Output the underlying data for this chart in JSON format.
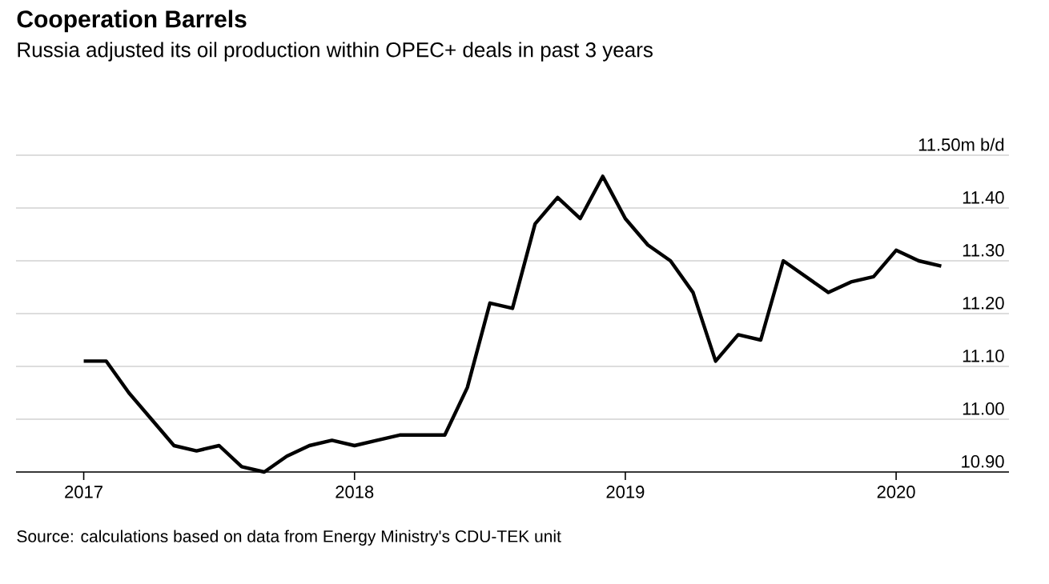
{
  "chart_data": {
    "type": "line",
    "title": "Cooperation Barrels",
    "subtitle": "Russia adjusted its oil production within OPEC+ deals in past 3 years",
    "x": [
      "2017-01",
      "2017-02",
      "2017-03",
      "2017-04",
      "2017-05",
      "2017-06",
      "2017-07",
      "2017-08",
      "2017-09",
      "2017-10",
      "2017-11",
      "2017-12",
      "2018-01",
      "2018-02",
      "2018-03",
      "2018-04",
      "2018-05",
      "2018-06",
      "2018-07",
      "2018-08",
      "2018-09",
      "2018-10",
      "2018-11",
      "2018-12",
      "2019-01",
      "2019-02",
      "2019-03",
      "2019-04",
      "2019-05",
      "2019-06",
      "2019-07",
      "2019-08",
      "2019-09",
      "2019-10",
      "2019-11",
      "2019-12",
      "2020-01",
      "2020-02",
      "2020-03"
    ],
    "series": [
      {
        "color": "#000000",
        "values": [
          11.11,
          11.11,
          11.05,
          11.0,
          10.95,
          10.94,
          10.95,
          10.91,
          10.9,
          10.93,
          10.95,
          10.96,
          10.95,
          10.96,
          10.97,
          10.97,
          10.97,
          11.06,
          11.22,
          11.21,
          11.37,
          11.42,
          11.38,
          11.46,
          11.38,
          11.33,
          11.3,
          11.24,
          11.11,
          11.16,
          11.15,
          11.3,
          11.27,
          11.24,
          11.26,
          11.27,
          11.32,
          11.3,
          11.29
        ]
      }
    ],
    "xlim": [
      "2016-10",
      "2020-06"
    ],
    "xticks": [
      "2017",
      "2018",
      "2019",
      "2020"
    ],
    "ylim": [
      10.9,
      11.5
    ],
    "yticks": [
      {
        "value": 10.9,
        "label": "10.90"
      },
      {
        "value": 11.0,
        "label": "11.00"
      },
      {
        "value": 11.1,
        "label": "11.10"
      },
      {
        "value": 11.2,
        "label": "11.20"
      },
      {
        "value": 11.3,
        "label": "11.30"
      },
      {
        "value": 11.4,
        "label": "11.40"
      },
      {
        "value": 11.5,
        "label": "11.50m b/d"
      }
    ],
    "grid": "y",
    "marker": "none",
    "line_style": "solid",
    "annotations": [
      "Source: calculations based on data from Energy Ministry's CDU-TEK unit"
    ]
  }
}
